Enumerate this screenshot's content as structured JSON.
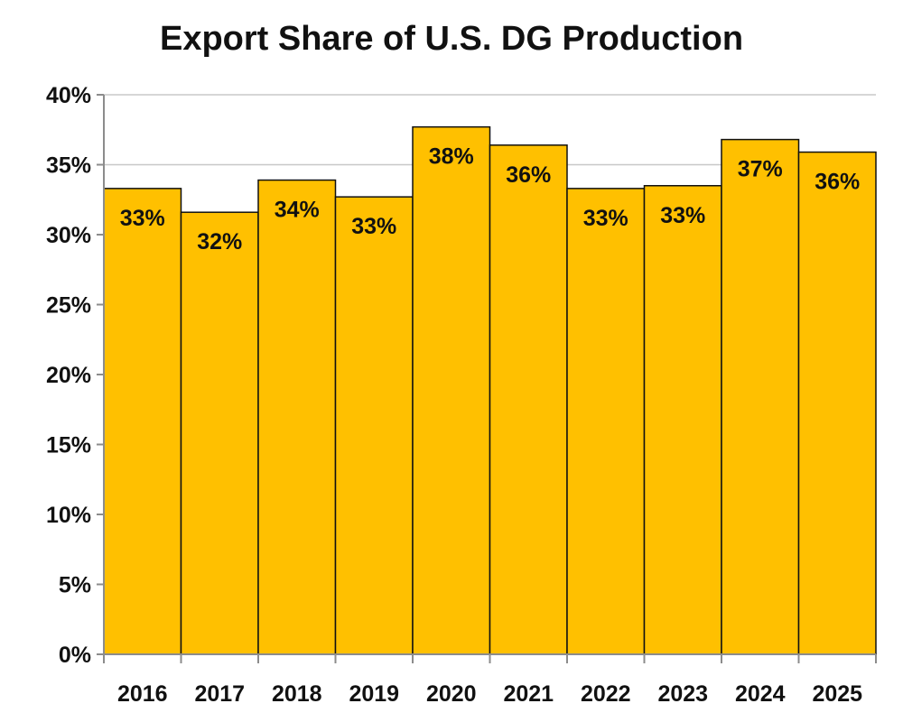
{
  "chart_data": {
    "type": "bar",
    "title": "Export Share of U.S. DG Production",
    "categories": [
      "2016",
      "2017",
      "2018",
      "2019",
      "2020",
      "2021",
      "2022",
      "2023",
      "2024",
      "2025"
    ],
    "values": [
      33.3,
      31.6,
      33.9,
      32.7,
      37.7,
      36.4,
      33.3,
      33.5,
      36.8,
      35.9
    ],
    "data_labels": [
      "33%",
      "32%",
      "34%",
      "33%",
      "38%",
      "36%",
      "33%",
      "33%",
      "37%",
      "36%"
    ],
    "ylim": [
      0,
      40
    ],
    "y_ticks": [
      0,
      5,
      10,
      15,
      20,
      25,
      30,
      35,
      40
    ],
    "y_tick_labels": [
      "0%",
      "5%",
      "10%",
      "15%",
      "20%",
      "25%",
      "30%",
      "35%",
      "40%"
    ],
    "xlabel": "",
    "ylabel": "",
    "grid": true,
    "legend": "none",
    "colors": {
      "bar_fill": "#FFC000",
      "bar_stroke": "#111111",
      "grid": "#c8c8c8",
      "axis": "#8c8c8c"
    }
  }
}
